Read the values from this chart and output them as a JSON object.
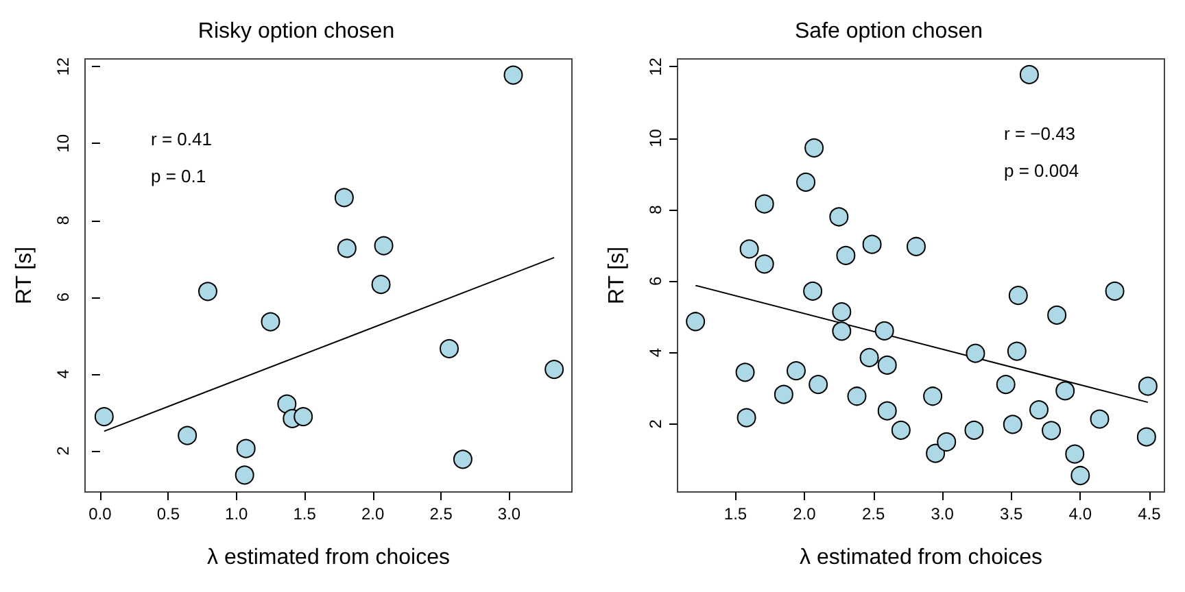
{
  "chart_data": [
    {
      "type": "scatter",
      "title": "Risky option chosen",
      "xlabel": "λ estimated from choices",
      "ylabel": "RT [s]",
      "xlim": [
        -0.11,
        3.46
      ],
      "ylim": [
        0.93,
        12.2
      ],
      "xticks": [
        {
          "value": 0,
          "label": "0.0"
        },
        0.5,
        {
          "value": 1,
          "label": "1.0"
        },
        1.5,
        {
          "value": 2,
          "label": "2.0"
        },
        2.5,
        {
          "value": 3,
          "label": "3.0"
        }
      ],
      "yticks": [
        2,
        4,
        6,
        8,
        10,
        12
      ],
      "grid": false,
      "marker": "circle",
      "annotations": [
        "r = 0.41",
        "p = 0.1"
      ],
      "series": [
        {
          "color": "#add8e6",
          "x": [
            0.03,
            0.64,
            0.79,
            1.07,
            1.06,
            1.25,
            1.37,
            1.41,
            1.49,
            1.79,
            1.81,
            2.08,
            2.06,
            2.56,
            2.66,
            3.03,
            3.33
          ],
          "values": [
            2.89,
            2.4,
            6.15,
            2.06,
            1.37,
            5.36,
            3.22,
            2.84,
            2.89,
            8.59,
            7.27,
            7.34,
            6.33,
            4.66,
            1.78,
            11.78,
            4.12
          ]
        },
        {
          "type": "line",
          "marker": "none",
          "color": "#000000",
          "x": [
            0.03,
            3.33
          ],
          "values": [
            2.51,
            7.03
          ]
        }
      ]
    },
    {
      "type": "scatter",
      "title": "Safe option chosen",
      "xlabel": "λ estimated from choices",
      "ylabel": "RT [s]",
      "xlim": [
        1.08,
        4.61
      ],
      "ylim": [
        0.1,
        12.22
      ],
      "xticks": [
        1.5,
        {
          "value": 2,
          "label": "2.0"
        },
        2.5,
        {
          "value": 3,
          "label": "3.0"
        },
        3.5,
        {
          "value": 4,
          "label": "4.0"
        },
        4.5
      ],
      "yticks": [
        2,
        4,
        6,
        8,
        10,
        12
      ],
      "grid": false,
      "marker": "circle",
      "annotations": [
        "r = −0.43",
        "p = 0.004"
      ],
      "series": [
        {
          "color": "#add8e6",
          "x": [
            1.21,
            1.57,
            1.58,
            1.6,
            1.71,
            1.71,
            1.85,
            1.94,
            2.01,
            2.06,
            2.07,
            2.1,
            2.25,
            2.27,
            2.27,
            2.3,
            2.38,
            2.47,
            2.49,
            2.58,
            2.6,
            2.6,
            2.7,
            2.81,
            2.93,
            2.95,
            3.03,
            3.23,
            3.24,
            3.46,
            3.51,
            3.54,
            3.55,
            3.63,
            3.7,
            3.79,
            3.83,
            3.89,
            3.96,
            4.0,
            4.14,
            4.25,
            4.49,
            4.48
          ],
          "values": [
            4.87,
            3.45,
            2.18,
            6.9,
            6.48,
            8.16,
            2.83,
            3.49,
            8.77,
            5.72,
            9.73,
            3.11,
            7.8,
            5.14,
            4.6,
            6.72,
            2.78,
            3.86,
            7.03,
            4.61,
            3.65,
            2.37,
            1.83,
            6.97,
            2.78,
            1.18,
            1.5,
            1.83,
            3.98,
            3.11,
            1.99,
            4.04,
            5.6,
            11.78,
            2.4,
            1.82,
            5.05,
            2.93,
            1.16,
            0.56,
            2.14,
            5.72,
            3.06,
            1.64
          ]
        },
        {
          "type": "line",
          "marker": "none",
          "color": "#000000",
          "x": [
            1.21,
            4.49
          ],
          "values": [
            5.88,
            2.61
          ]
        }
      ]
    }
  ]
}
